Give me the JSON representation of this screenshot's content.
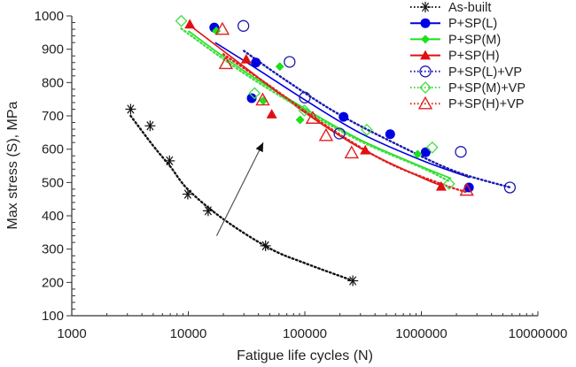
{
  "chart_data": {
    "type": "scatter",
    "title": "",
    "xlabel": "Fatigue life cycles (N)",
    "ylabel": "Max stress (S), MPa",
    "xscale": "log",
    "xlim": [
      1000,
      10000000
    ],
    "ylim": [
      100,
      1000
    ],
    "xticks": [
      "1000",
      "10000",
      "100000",
      "1000000",
      "10000000"
    ],
    "yticks": [
      "100",
      "200",
      "300",
      "400",
      "500",
      "600",
      "700",
      "800",
      "900",
      "1000"
    ],
    "grid": false,
    "legend_position": "top-right",
    "annotation": "arrow pointing from As-built curve toward treated curves",
    "series": [
      {
        "name": "As-built",
        "color": "#111111",
        "marker": "asterisk",
        "line": "dotted",
        "points": [
          [
            3200,
            720
          ],
          [
            4700,
            670
          ],
          [
            6900,
            565
          ],
          [
            9900,
            465
          ],
          [
            14800,
            415
          ],
          [
            46000,
            310
          ],
          [
            258000,
            205
          ]
        ],
        "fit": [
          [
            3200,
            700
          ],
          [
            5000,
            610
          ],
          [
            7000,
            548
          ],
          [
            10000,
            478
          ],
          [
            20000,
            390
          ],
          [
            50000,
            302
          ],
          [
            100000,
            258
          ],
          [
            250000,
            207
          ]
        ]
      },
      {
        "name": "P+SP(L)",
        "color": "#0000e0",
        "marker": "circle-filled",
        "line": "solid",
        "points": [
          [
            16700,
            965
          ],
          [
            38000,
            860
          ],
          [
            35000,
            753
          ],
          [
            215000,
            697
          ],
          [
            540000,
            645
          ],
          [
            1090000,
            591
          ],
          [
            2560000,
            485
          ]
        ],
        "fit": [
          [
            17000,
            920
          ],
          [
            40000,
            838
          ],
          [
            100000,
            748
          ],
          [
            300000,
            648
          ],
          [
            1000000,
            567
          ],
          [
            2600000,
            515
          ]
        ]
      },
      {
        "name": "P+SP(M)",
        "color": "#1ee01e",
        "marker": "diamond-filled",
        "line": "solid",
        "points": [
          [
            17400,
            955
          ],
          [
            61000,
            848
          ],
          [
            44000,
            745
          ],
          [
            91000,
            688
          ],
          [
            930000,
            585
          ]
        ],
        "fit": [
          [
            10000,
            955
          ],
          [
            30000,
            835
          ],
          [
            100000,
            722
          ],
          [
            300000,
            628
          ],
          [
            1000000,
            548
          ],
          [
            1800000,
            512
          ]
        ]
      },
      {
        "name": "P+SP(H)",
        "color": "#e01010",
        "marker": "triangle-filled",
        "line": "solid",
        "points": [
          [
            10300,
            975
          ],
          [
            31400,
            870
          ],
          [
            52000,
            705
          ],
          [
            330000,
            597
          ],
          [
            1480000,
            488
          ]
        ],
        "fit": [
          [
            10000,
            975
          ],
          [
            30000,
            848
          ],
          [
            100000,
            710
          ],
          [
            300000,
            603
          ],
          [
            1000000,
            515
          ],
          [
            1500000,
            490
          ]
        ]
      },
      {
        "name": "P+SP(L)+VP",
        "color": "#1a1ab0",
        "marker": "circle-open",
        "line": "dotted",
        "points": [
          [
            29700,
            970
          ],
          [
            74000,
            862
          ],
          [
            100000,
            755
          ],
          [
            198000,
            647
          ],
          [
            2180000,
            592
          ],
          [
            5750000,
            485
          ]
        ],
        "fit": [
          [
            30000,
            895
          ],
          [
            70000,
            805
          ],
          [
            200000,
            703
          ],
          [
            700000,
            605
          ],
          [
            2000000,
            532
          ],
          [
            5800000,
            485
          ]
        ]
      },
      {
        "name": "P+SP(M)+VP",
        "color": "#44dd44",
        "marker": "diamond-open",
        "line": "dotted",
        "points": [
          [
            8700,
            985
          ],
          [
            37000,
            768
          ],
          [
            99000,
            716
          ],
          [
            340000,
            658
          ],
          [
            1240000,
            605
          ],
          [
            1730000,
            496
          ]
        ],
        "fit": [
          [
            8700,
            962
          ],
          [
            30000,
            828
          ],
          [
            100000,
            716
          ],
          [
            300000,
            624
          ],
          [
            1000000,
            545
          ],
          [
            1700000,
            505
          ]
        ]
      },
      {
        "name": "P+SP(H)+VP",
        "color": "#e02020",
        "marker": "triangle-open",
        "line": "dotted",
        "points": [
          [
            19600,
            960
          ],
          [
            21000,
            857
          ],
          [
            43500,
            748
          ],
          [
            117000,
            693
          ],
          [
            152000,
            641
          ],
          [
            252000,
            589
          ],
          [
            2450000,
            477
          ]
        ],
        "fit": [
          [
            20000,
            885
          ],
          [
            50000,
            790
          ],
          [
            150000,
            672
          ],
          [
            500000,
            562
          ],
          [
            1500000,
            495
          ],
          [
            2500000,
            470
          ]
        ]
      }
    ],
    "arrow": {
      "from": [
        17500,
        340
      ],
      "to": [
        44000,
        620
      ]
    }
  }
}
